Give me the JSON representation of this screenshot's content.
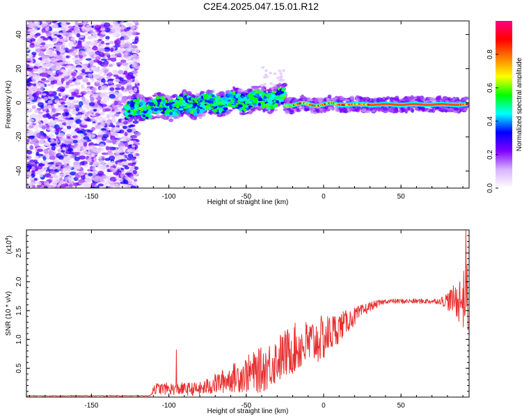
{
  "title": "C2E4.2025.047.15.01.R12",
  "chart_data": [
    {
      "type": "heatmap",
      "name": "spectrogram",
      "xlabel": "Height of straight line (km)",
      "ylabel": "Frequency (Hz)",
      "xlim": [
        -192,
        94
      ],
      "ylim": [
        -50,
        48
      ],
      "xticks": [
        -150,
        -100,
        -50,
        0,
        50
      ],
      "xtick_labels": [
        "-150",
        "-100",
        "-50",
        "0",
        "50"
      ],
      "yticks": [
        -40,
        -20,
        0,
        20,
        40
      ],
      "ytick_labels": [
        "-40",
        "-20",
        "0",
        "20",
        "40"
      ],
      "colorbar": {
        "label": "Normalized spectral amplitude",
        "range": [
          0,
          1
        ],
        "ticks": [
          0.0,
          0.2,
          0.4,
          0.6,
          0.8
        ],
        "tick_labels": [
          "0.0",
          "0.2",
          "0.4",
          "0.6",
          "0.8"
        ],
        "colormap": "rainbow",
        "colors": [
          "#ffffff",
          "#d9b3ff",
          "#8000ff",
          "#0000ff",
          "#00ffff",
          "#00ff00",
          "#ffff00",
          "#ff8000",
          "#ff0000",
          "#ff0080"
        ]
      },
      "features": [
        {
          "description_x_range": [
            -192,
            -122
          ],
          "freq_range": [
            -50,
            48
          ],
          "amplitude": 0.15,
          "kind": "noise"
        },
        {
          "description_x_range": [
            -128,
            -25
          ],
          "freq_center_start": -4,
          "freq_center_end": 3,
          "amplitude": 0.45,
          "kind": "signal-band"
        },
        {
          "description_x_range": [
            -25,
            94
          ],
          "freq_center": -1,
          "amplitude": 0.9,
          "kind": "signal-band"
        }
      ]
    },
    {
      "type": "line",
      "name": "snr",
      "xlabel": "Height of straight line (km)",
      "ylabel": "SNR (10 * v/v)",
      "yscale_label": "(x10",
      "yscale_exp": "4",
      "yscale_close": ")",
      "xlim": [
        -192,
        94
      ],
      "ylim": [
        0,
        2.9
      ],
      "xticks": [
        -150,
        -100,
        -50,
        0,
        50
      ],
      "xtick_labels": [
        "-150",
        "-100",
        "-50",
        "0",
        "50"
      ],
      "yticks": [
        0.5,
        1.0,
        1.5,
        2.0,
        2.5
      ],
      "ytick_labels": [
        "0.5",
        "1.0",
        "1.5",
        "2.0",
        "2.5"
      ],
      "line_color": "#e83030",
      "series_envelope": [
        {
          "x": -192,
          "base": 0.02,
          "spread": 0.01
        },
        {
          "x": -112,
          "base": 0.02,
          "spread": 0.01
        },
        {
          "x": -110,
          "base": 0.12,
          "spread": 0.12
        },
        {
          "x": -80,
          "base": 0.1,
          "spread": 0.15
        },
        {
          "x": -60,
          "base": 0.25,
          "spread": 0.3
        },
        {
          "x": -40,
          "base": 0.35,
          "spread": 0.5
        },
        {
          "x": -20,
          "base": 0.7,
          "spread": 0.55
        },
        {
          "x": 0,
          "base": 0.9,
          "spread": 0.5
        },
        {
          "x": 15,
          "base": 1.25,
          "spread": 0.25
        },
        {
          "x": 30,
          "base": 1.55,
          "spread": 0.1
        },
        {
          "x": 40,
          "base": 1.65,
          "spread": 0.05
        },
        {
          "x": 75,
          "base": 1.65,
          "spread": 0.06
        },
        {
          "x": 85,
          "base": 1.6,
          "spread": 0.35
        },
        {
          "x": 93,
          "base": 1.5,
          "spread": 0.8
        }
      ],
      "peaks": [
        {
          "x": -95,
          "y": 0.82
        },
        {
          "x": 92,
          "y": 2.9
        }
      ]
    }
  ]
}
